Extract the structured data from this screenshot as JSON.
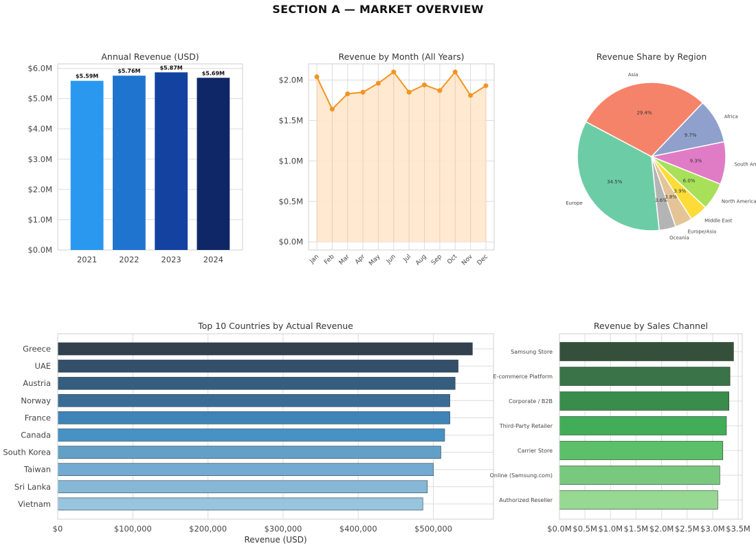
{
  "suptitle": "SECTION A — MARKET OVERVIEW",
  "chart_data": [
    {
      "type": "bar",
      "title": "Annual Revenue (USD)",
      "categories": [
        "2021",
        "2022",
        "2023",
        "2024"
      ],
      "values": [
        5.59,
        5.76,
        5.87,
        5.69
      ],
      "data_labels": [
        "$5.59M",
        "$5.76M",
        "$5.87M",
        "$5.69M"
      ],
      "yticks": [
        0,
        1,
        2,
        3,
        4,
        5,
        6
      ],
      "ytick_labels": [
        "$0.0M",
        "$1.0M",
        "$2.0M",
        "$3.0M",
        "$4.0M",
        "$5.0M",
        "$6.0M"
      ],
      "ylim": [
        0,
        6.15
      ],
      "colors": [
        "#2b98f0",
        "#1f74d0",
        "#1442a0",
        "#0f2766"
      ],
      "grid": true
    },
    {
      "type": "area",
      "title": "Revenue by Month (All Years)",
      "categories": [
        "Jan",
        "Feb",
        "Mar",
        "Apr",
        "May",
        "Jun",
        "Jul",
        "Aug",
        "Sep",
        "Oct",
        "Nov",
        "Dec"
      ],
      "values": [
        2.04,
        1.64,
        1.83,
        1.85,
        1.96,
        2.1,
        1.85,
        1.94,
        1.87,
        2.1,
        1.81,
        1.93
      ],
      "yticks": [
        0,
        0.5,
        1.0,
        1.5,
        2.0
      ],
      "ytick_labels": [
        "$0.0M",
        "$0.5M",
        "$1.0M",
        "$1.5M",
        "$2.0M"
      ],
      "ylim": [
        -0.1,
        2.2
      ],
      "line_color": "#f39422",
      "fill_color": "#ffe7cc",
      "grid": true
    },
    {
      "type": "pie",
      "title": "Revenue Share by Region",
      "labels": [
        "Europe",
        "Asia",
        "Africa",
        "South America",
        "North America",
        "Middle East",
        "Europe/Asia",
        "Oceania"
      ],
      "values": [
        34.5,
        29.4,
        9.7,
        9.3,
        6.0,
        3.9,
        3.8,
        3.6
      ],
      "pct_labels": [
        "34.5%",
        "29.4%",
        "9.7%",
        "9.3%",
        "6.0%",
        "3.9%",
        "3.8%",
        "3.6%"
      ],
      "colors": [
        "#6ccca6",
        "#f5836a",
        "#8fa0cc",
        "#e07cc6",
        "#a8e05a",
        "#fddc38",
        "#e4c496",
        "#b4b4b4"
      ]
    },
    {
      "type": "bar",
      "orientation": "horizontal",
      "title": "Top 10 Countries by Actual Revenue",
      "categories": [
        "Greece",
        "UAE",
        "Austria",
        "Norway",
        "France",
        "Canada",
        "South Korea",
        "Taiwan",
        "Sri Lanka",
        "Vietnam"
      ],
      "values": [
        552000,
        533000,
        529000,
        522000,
        522000,
        515000,
        510000,
        500000,
        492000,
        486000
      ],
      "xticks": [
        0,
        100000,
        200000,
        300000,
        400000,
        500000
      ],
      "xtick_labels": [
        "$0",
        "$100,000",
        "$200,000",
        "$300,000",
        "$400,000",
        "$500,000"
      ],
      "xlabel": "Revenue (USD)",
      "xlim": [
        0,
        580000
      ],
      "colors": [
        "#33404e",
        "#344f69",
        "#355d7e",
        "#3a6d95",
        "#3f84b6",
        "#4792c4",
        "#62a0c8",
        "#73aad2",
        "#86b8d6",
        "#98c4de"
      ],
      "grid": true
    },
    {
      "type": "bar",
      "orientation": "horizontal",
      "title": "Revenue by Sales Channel",
      "categories": [
        "Samsung Store",
        "E-commerce Platform",
        "Corporate / B2B",
        "Third-Party Retailer",
        "Carrier Store",
        "Online (Samsung.com)",
        "Authorized Reseller"
      ],
      "values": [
        3.41,
        3.34,
        3.32,
        3.27,
        3.2,
        3.14,
        3.1
      ],
      "xticks": [
        0,
        0.5,
        1.0,
        1.5,
        2.0,
        2.5,
        3.0,
        3.5
      ],
      "xtick_labels": [
        "$0.0M",
        "$0.5M",
        "$1.0M",
        "$1.5M",
        "$2.0M",
        "$2.5M",
        "$3.0M",
        "$3.5M"
      ],
      "xlim": [
        0,
        3.58
      ],
      "colors": [
        "#34503a",
        "#397347",
        "#3a8c4c",
        "#42ad58",
        "#5cbf6a",
        "#78c97e",
        "#97d893"
      ],
      "grid": true
    }
  ]
}
